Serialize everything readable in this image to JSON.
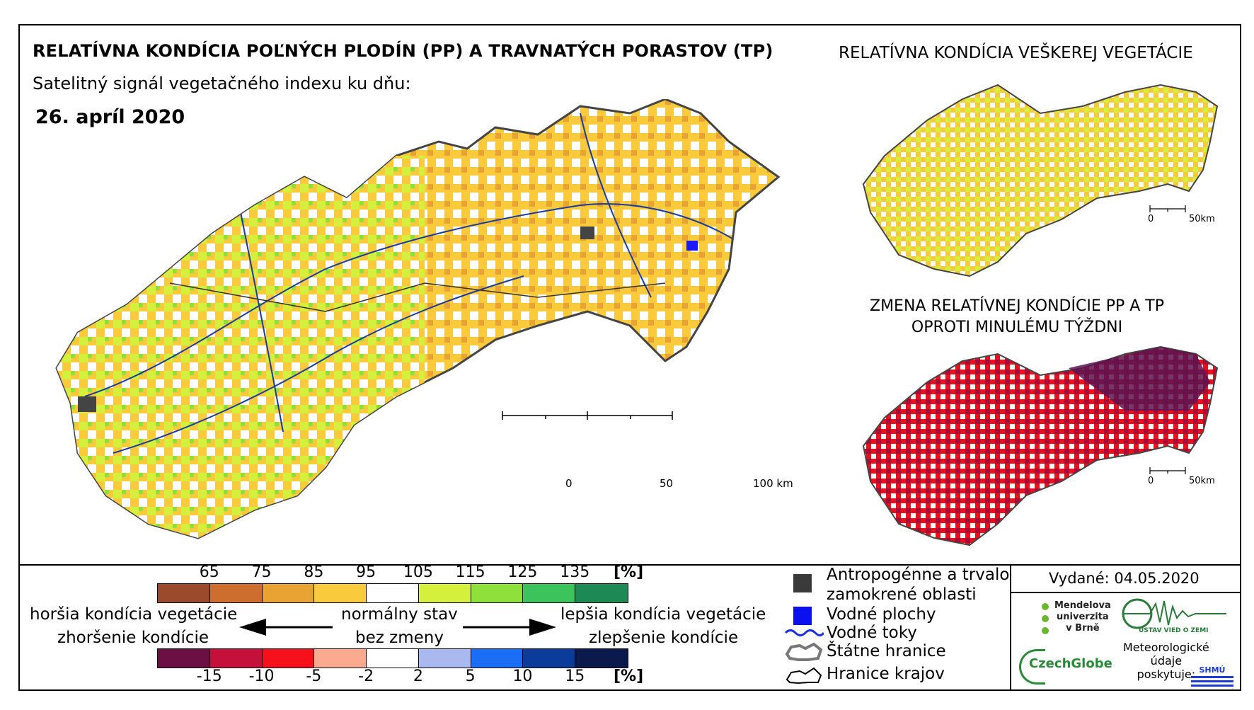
{
  "header": {
    "main_title": "RELATÍVNA KONDÍCIA POĽNÝCH PLODÍN (PP) A TRAVNATÝCH PORASTOV (TP)",
    "subtitle": "Satelitný signál vegetačného indexu ku dňu:",
    "date": "26. apríl 2020"
  },
  "inset_top": {
    "title": "RELATÍVNA KONDÍCIA VEŠKEREJ VEGETÁCIE",
    "scale_start": "0",
    "scale_end": "50km"
  },
  "inset_bottom": {
    "title_line1": "ZMENA RELATÍVNEJ KONDÍCIE PP A TP",
    "title_line2": "OPROTI MINULÉMU TÝŽDNI",
    "scale_start": "0",
    "scale_end": "50km"
  },
  "main_scale": {
    "t0": "0",
    "t50": "50",
    "t100": "100 km"
  },
  "legend": {
    "condition_ticks": [
      "65",
      "75",
      "85",
      "95",
      "105",
      "115",
      "125",
      "135"
    ],
    "condition_unit": "[%]",
    "condition_colors": [
      "#9b4a2c",
      "#cd6e2e",
      "#e8a332",
      "#f9cb3c",
      "#ffffff",
      "#d4f03c",
      "#8fe03a",
      "#3cc35c",
      "#1d8a55"
    ],
    "change_ticks": [
      "-15",
      "-10",
      "-5",
      "-2",
      "2",
      "5",
      "10",
      "15"
    ],
    "change_unit": "[%]",
    "change_colors": [
      "#6b0f45",
      "#c4103a",
      "#f5101a",
      "#f9a98e",
      "#ffffff",
      "#a9b8ef",
      "#1a6ef5",
      "#0b3c99",
      "#0a1a4c"
    ],
    "worse_line1": "horšia kondícia vegetácie",
    "worse_line2": "zhoršenie kondície",
    "normal_line1": "normálny stav",
    "normal_line2": "bez zmeny",
    "better_line1": "lepšia kondícia vegetácie",
    "better_line2": "zlepšenie kondície",
    "items": {
      "anthropogenic_1": "Antropogénne a trvalo",
      "anthropogenic_2": "zamokrené oblasti",
      "water_bodies": "Vodné plochy",
      "rivers": "Vodné toky",
      "state_border": "Štátne hranice",
      "region_border": "Hranice krajov"
    },
    "issued": "Vydané: 04.05.2020",
    "logos": {
      "mendel": [
        "Mendelova",
        "univerzita",
        "v Brně"
      ],
      "ustav": "ÚSTAV VIED O ZEMI",
      "czechglobe": "CzechGlobe",
      "meteo": [
        "Meteorologické",
        "údaje",
        "poskytuje:"
      ],
      "shmu": "SHMÚ"
    }
  }
}
